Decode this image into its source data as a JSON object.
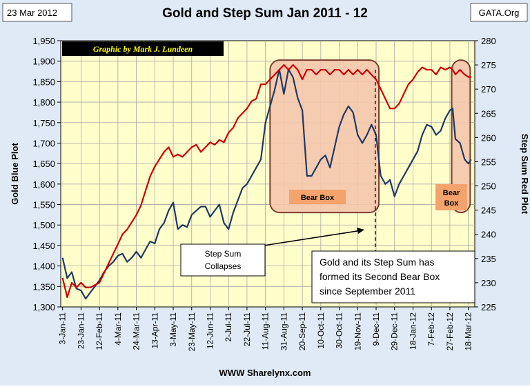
{
  "header": {
    "date": "23 Mar 2012",
    "source": "GATA.Org"
  },
  "footer": {
    "website": "WWW Sharelynx.com"
  },
  "colors": {
    "outer_bg": "#dfeaf6",
    "plot_bg": "#ffffcc",
    "gold_line": "#1f3864",
    "step_sum_line": "#cc0000",
    "bear_box_fill": "#f4c7ad",
    "bear_box_stroke": "#7b3f2e",
    "bear_label_bg": "#f4a36c",
    "credit_bg": "#000000",
    "credit_text": "#ffff00"
  },
  "chart_data": {
    "type": "line",
    "title": "Gold and Step Sum Jan 2011 - 12",
    "credit": "Graphic by Mark J. Lundeen",
    "ylabel_left": "Gold Blue Plot",
    "ylabel_right": "Step Sum Red Plot",
    "ylim_left": [
      1300,
      1950
    ],
    "ylim_right": [
      225,
      280
    ],
    "yticks_left": [
      "1,950",
      "1,900",
      "1,850",
      "1,800",
      "1,750",
      "1,700",
      "1,650",
      "1,600",
      "1,550",
      "1,500",
      "1,450",
      "1,400",
      "1,350",
      "1,300"
    ],
    "yticks_right": [
      "280",
      "275",
      "270",
      "265",
      "260",
      "255",
      "250",
      "245",
      "240",
      "235",
      "230",
      "225"
    ],
    "xticks": [
      "3-Jan-11",
      "23-Jan-11",
      "12-Feb-11",
      "4-Mar-11",
      "24-Mar-11",
      "13-Apr-11",
      "3-May-11",
      "23-May-11",
      "12-Jun-11",
      "2-Jul-11",
      "22-Jul-11",
      "11-Aug-11",
      "31-Aug-11",
      "20-Sep-11",
      "10-Oct-11",
      "30-Oct-11",
      "19-Nov-11",
      "9-Dec-11",
      "29-Dec-11",
      "18-Jan-12",
      "7-Feb-12",
      "27-Feb-12",
      "18-Mar-12"
    ],
    "grid": true,
    "series": [
      {
        "name": "Gold",
        "axis": "left",
        "points": [
          [
            "3-Jan-11",
            1420
          ],
          [
            "8-Jan-11",
            1370
          ],
          [
            "13-Jan-11",
            1385
          ],
          [
            "18-Jan-11",
            1345
          ],
          [
            "23-Jan-11",
            1340
          ],
          [
            "28-Jan-11",
            1320
          ],
          [
            "2-Feb-11",
            1335
          ],
          [
            "7-Feb-11",
            1350
          ],
          [
            "12-Feb-11",
            1365
          ],
          [
            "17-Feb-11",
            1385
          ],
          [
            "22-Feb-11",
            1400
          ],
          [
            "27-Feb-11",
            1410
          ],
          [
            "4-Mar-11",
            1425
          ],
          [
            "9-Mar-11",
            1430
          ],
          [
            "14-Mar-11",
            1410
          ],
          [
            "19-Mar-11",
            1420
          ],
          [
            "24-Mar-11",
            1435
          ],
          [
            "29-Mar-11",
            1420
          ],
          [
            "3-Apr-11",
            1440
          ],
          [
            "8-Apr-11",
            1460
          ],
          [
            "13-Apr-11",
            1455
          ],
          [
            "18-Apr-11",
            1490
          ],
          [
            "23-Apr-11",
            1505
          ],
          [
            "28-Apr-11",
            1535
          ],
          [
            "3-May-11",
            1555
          ],
          [
            "8-May-11",
            1490
          ],
          [
            "13-May-11",
            1500
          ],
          [
            "18-May-11",
            1495
          ],
          [
            "23-May-11",
            1525
          ],
          [
            "28-May-11",
            1535
          ],
          [
            "2-Jun-11",
            1545
          ],
          [
            "7-Jun-11",
            1545
          ],
          [
            "12-Jun-11",
            1520
          ],
          [
            "17-Jun-11",
            1535
          ],
          [
            "22-Jun-11",
            1550
          ],
          [
            "27-Jun-11",
            1505
          ],
          [
            "2-Jul-11",
            1490
          ],
          [
            "7-Jul-11",
            1530
          ],
          [
            "12-Jul-11",
            1560
          ],
          [
            "17-Jul-11",
            1590
          ],
          [
            "22-Jul-11",
            1600
          ],
          [
            "27-Jul-11",
            1620
          ],
          [
            "1-Aug-11",
            1640
          ],
          [
            "6-Aug-11",
            1660
          ],
          [
            "11-Aug-11",
            1750
          ],
          [
            "16-Aug-11",
            1790
          ],
          [
            "21-Aug-11",
            1830
          ],
          [
            "26-Aug-11",
            1880
          ],
          [
            "31-Aug-11",
            1820
          ],
          [
            "5-Sep-11",
            1880
          ],
          [
            "10-Sep-11",
            1860
          ],
          [
            "15-Sep-11",
            1810
          ],
          [
            "20-Sep-11",
            1780
          ],
          [
            "25-Sep-11",
            1620
          ],
          [
            "30-Sep-11",
            1620
          ],
          [
            "5-Oct-11",
            1640
          ],
          [
            "10-Oct-11",
            1660
          ],
          [
            "15-Oct-11",
            1670
          ],
          [
            "20-Oct-11",
            1640
          ],
          [
            "25-Oct-11",
            1690
          ],
          [
            "30-Oct-11",
            1740
          ],
          [
            "4-Nov-11",
            1770
          ],
          [
            "9-Nov-11",
            1790
          ],
          [
            "14-Nov-11",
            1775
          ],
          [
            "19-Nov-11",
            1720
          ],
          [
            "24-Nov-11",
            1700
          ],
          [
            "29-Nov-11",
            1720
          ],
          [
            "4-Dec-11",
            1745
          ],
          [
            "9-Dec-11",
            1720
          ],
          [
            "14-Dec-11",
            1620
          ],
          [
            "19-Dec-11",
            1600
          ],
          [
            "24-Dec-11",
            1610
          ],
          [
            "29-Dec-11",
            1570
          ],
          [
            "3-Jan-12",
            1600
          ],
          [
            "8-Jan-12",
            1620
          ],
          [
            "13-Jan-12",
            1640
          ],
          [
            "18-Jan-12",
            1660
          ],
          [
            "23-Jan-12",
            1680
          ],
          [
            "28-Jan-12",
            1720
          ],
          [
            "2-Feb-12",
            1745
          ],
          [
            "7-Feb-12",
            1740
          ],
          [
            "12-Feb-12",
            1720
          ],
          [
            "17-Feb-12",
            1730
          ],
          [
            "22-Feb-12",
            1760
          ],
          [
            "27-Feb-12",
            1780
          ],
          [
            "1-Mar-12",
            1785
          ],
          [
            "4-Mar-12",
            1710
          ],
          [
            "9-Mar-12",
            1700
          ],
          [
            "14-Mar-12",
            1660
          ],
          [
            "18-Mar-12",
            1650
          ],
          [
            "21-Mar-12",
            1660
          ]
        ]
      },
      {
        "name": "Step Sum",
        "axis": "right",
        "points": [
          [
            "3-Jan-11",
            231
          ],
          [
            "8-Jan-11",
            227
          ],
          [
            "13-Jan-11",
            230
          ],
          [
            "18-Jan-11",
            229
          ],
          [
            "23-Jan-11",
            230
          ],
          [
            "28-Jan-11",
            229
          ],
          [
            "2-Feb-11",
            229
          ],
          [
            "7-Feb-11",
            229.5
          ],
          [
            "12-Feb-11",
            230
          ],
          [
            "17-Feb-11",
            232
          ],
          [
            "22-Feb-11",
            234
          ],
          [
            "27-Feb-11",
            236
          ],
          [
            "4-Mar-11",
            238
          ],
          [
            "9-Mar-11",
            240
          ],
          [
            "14-Mar-11",
            241
          ],
          [
            "19-Mar-11",
            242.5
          ],
          [
            "24-Mar-11",
            244
          ],
          [
            "29-Mar-11",
            246
          ],
          [
            "3-Apr-11",
            249
          ],
          [
            "8-Apr-11",
            252
          ],
          [
            "13-Apr-11",
            254
          ],
          [
            "18-Apr-11",
            255.5
          ],
          [
            "23-Apr-11",
            257
          ],
          [
            "28-Apr-11",
            258
          ],
          [
            "3-May-11",
            256
          ],
          [
            "8-May-11",
            256.5
          ],
          [
            "13-May-11",
            256
          ],
          [
            "18-May-11",
            257
          ],
          [
            "23-May-11",
            258
          ],
          [
            "28-May-11",
            258.5
          ],
          [
            "2-Jun-11",
            257
          ],
          [
            "7-Jun-11",
            258
          ],
          [
            "12-Jun-11",
            259
          ],
          [
            "17-Jun-11",
            258.5
          ],
          [
            "22-Jun-11",
            259.5
          ],
          [
            "27-Jun-11",
            259
          ],
          [
            "2-Jul-11",
            261
          ],
          [
            "7-Jul-11",
            262
          ],
          [
            "12-Jul-11",
            264
          ],
          [
            "17-Jul-11",
            265
          ],
          [
            "22-Jul-11",
            266
          ],
          [
            "27-Jul-11",
            267.5
          ],
          [
            "1-Aug-11",
            268
          ],
          [
            "6-Aug-11",
            271
          ],
          [
            "11-Aug-11",
            271
          ],
          [
            "16-Aug-11",
            272
          ],
          [
            "21-Aug-11",
            273
          ],
          [
            "26-Aug-11",
            274
          ],
          [
            "31-Aug-11",
            275
          ],
          [
            "5-Sep-11",
            274
          ],
          [
            "10-Sep-11",
            275
          ],
          [
            "15-Sep-11",
            274
          ],
          [
            "20-Sep-11",
            272
          ],
          [
            "25-Sep-11",
            274
          ],
          [
            "30-Sep-11",
            274
          ],
          [
            "5-Oct-11",
            273
          ],
          [
            "10-Oct-11",
            274
          ],
          [
            "15-Oct-11",
            274
          ],
          [
            "20-Oct-11",
            273
          ],
          [
            "25-Oct-11",
            274
          ],
          [
            "30-Oct-11",
            274
          ],
          [
            "4-Nov-11",
            273
          ],
          [
            "9-Nov-11",
            274
          ],
          [
            "14-Nov-11",
            273
          ],
          [
            "19-Nov-11",
            274
          ],
          [
            "24-Nov-11",
            273
          ],
          [
            "29-Nov-11",
            274
          ],
          [
            "4-Dec-11",
            273
          ],
          [
            "9-Dec-11",
            272
          ],
          [
            "14-Dec-11",
            270
          ],
          [
            "19-Dec-11",
            268
          ],
          [
            "24-Dec-11",
            266
          ],
          [
            "29-Dec-11",
            266
          ],
          [
            "3-Jan-12",
            267
          ],
          [
            "8-Jan-12",
            269
          ],
          [
            "13-Jan-12",
            271
          ],
          [
            "18-Jan-12",
            272
          ],
          [
            "23-Jan-12",
            273.5
          ],
          [
            "28-Jan-12",
            274.5
          ],
          [
            "2-Feb-12",
            274
          ],
          [
            "7-Feb-12",
            274
          ],
          [
            "12-Feb-12",
            273
          ],
          [
            "17-Feb-12",
            274.5
          ],
          [
            "22-Feb-12",
            274
          ],
          [
            "27-Feb-12",
            274.5
          ],
          [
            "1-Mar-12",
            274
          ],
          [
            "4-Mar-12",
            273
          ],
          [
            "9-Mar-12",
            274
          ],
          [
            "14-Mar-12",
            273
          ],
          [
            "18-Mar-12",
            272.5
          ],
          [
            "21-Mar-12",
            272.5
          ]
        ]
      }
    ],
    "annotations": [
      {
        "text": "Bear Box",
        "x_start": "16-Aug-11",
        "x_end": "12-Dec-11",
        "y_top_right": 276,
        "y_bottom_right": 244.5
      },
      {
        "text": "Bear Box",
        "x_start": "29-Feb-12",
        "x_end": "20-Mar-12",
        "y_top_right": 276,
        "y_bottom_right": 244.5
      }
    ],
    "vline_date": "8-Dec-11",
    "callout_step_sum": "Step Sum Collapses",
    "callout_text": "Gold and its Step Sum has formed its Second Bear Box since September 2011"
  }
}
